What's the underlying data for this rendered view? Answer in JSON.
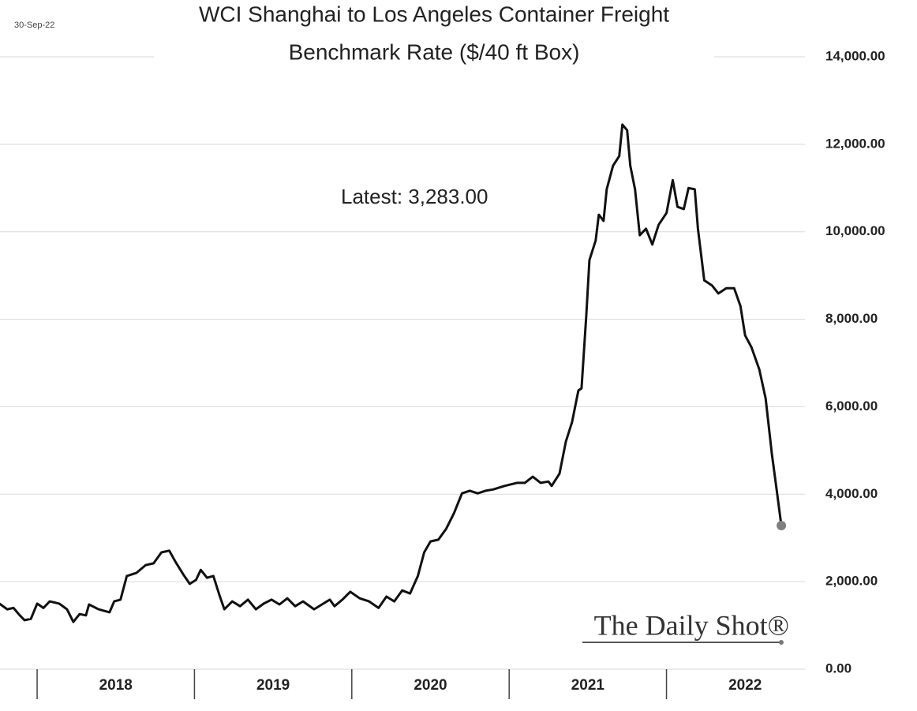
{
  "chart_data": {
    "type": "line",
    "date": "30-Sep-22",
    "title": [
      "WCI Shanghai to Los Angeles Container Freight",
      "Benchmark Rate ($/40 ft Box)"
    ],
    "annotation": "Latest:  3,283.00",
    "source": "The Daily Shot®",
    "color": "#111111",
    "marker_color": "#7f7f7f",
    "grid": true,
    "x": [
      2017.76,
      2017.81,
      2017.85,
      2017.89,
      2017.92,
      2017.96,
      2018.0,
      2018.04,
      2018.08,
      2018.14,
      2018.19,
      2018.23,
      2018.27,
      2018.31,
      2018.33,
      2018.39,
      2018.46,
      2018.49,
      2018.53,
      2018.57,
      2018.63,
      2018.69,
      2018.74,
      2018.79,
      2018.84,
      2018.88,
      2018.93,
      2018.97,
      2019.01,
      2019.04,
      2019.08,
      2019.12,
      2019.16,
      2019.19,
      2019.24,
      2019.29,
      2019.34,
      2019.39,
      2019.44,
      2019.49,
      2019.54,
      2019.59,
      2019.64,
      2019.69,
      2019.76,
      2019.81,
      2019.86,
      2019.89,
      2019.94,
      2019.99,
      2020.05,
      2020.11,
      2020.17,
      2020.22,
      2020.27,
      2020.32,
      2020.37,
      2020.42,
      2020.46,
      2020.5,
      2020.55,
      2020.6,
      2020.65,
      2020.7,
      2020.75,
      2020.8,
      2020.85,
      2020.9,
      2020.97,
      2021.05,
      2021.1,
      2021.15,
      2021.2,
      2021.25,
      2021.27,
      2021.32,
      2021.36,
      2021.4,
      2021.44,
      2021.46,
      2021.49,
      2021.51,
      2021.55,
      2021.57,
      2021.6,
      2021.62,
      2021.66,
      2021.7,
      2021.72,
      2021.75,
      2021.77,
      2021.8,
      2021.83,
      2021.87,
      2021.91,
      2021.95,
      2022.0,
      2022.04,
      2022.07,
      2022.11,
      2022.14,
      2022.18,
      2022.2,
      2022.24,
      2022.29,
      2022.33,
      2022.38,
      2022.43,
      2022.47,
      2022.5,
      2022.54,
      2022.59,
      2022.63,
      2022.67,
      2022.7,
      2022.73
    ],
    "values": [
      1500,
      1370,
      1400,
      1230,
      1120,
      1150,
      1500,
      1400,
      1550,
      1500,
      1370,
      1080,
      1260,
      1230,
      1480,
      1370,
      1300,
      1550,
      1590,
      2130,
      2200,
      2380,
      2420,
      2670,
      2710,
      2450,
      2160,
      1950,
      2040,
      2270,
      2090,
      2130,
      1680,
      1370,
      1550,
      1440,
      1590,
      1370,
      1500,
      1590,
      1480,
      1620,
      1440,
      1550,
      1370,
      1480,
      1590,
      1440,
      1590,
      1770,
      1620,
      1550,
      1400,
      1660,
      1550,
      1800,
      1730,
      2130,
      2670,
      2920,
      2960,
      3210,
      3570,
      4020,
      4080,
      4020,
      4080,
      4110,
      4190,
      4260,
      4260,
      4400,
      4260,
      4290,
      4190,
      4470,
      5200,
      5650,
      6370,
      6420,
      8080,
      9350,
      9800,
      10390,
      10250,
      10970,
      11510,
      11730,
      12450,
      12320,
      11510,
      10970,
      9920,
      10070,
      9710,
      10160,
      10430,
      11180,
      10570,
      10520,
      11000,
      10970,
      10070,
      8890,
      8770,
      8590,
      8710,
      8710,
      8300,
      7630,
      7360,
      6850,
      6190,
      4920,
      4110,
      3283
    ],
    "xlim": [
      2017.764,
      2022.88
    ],
    "xticks": [
      {
        "value": 2018,
        "label": "2018"
      },
      {
        "value": 2019,
        "label": "2019"
      },
      {
        "value": 2020,
        "label": "2020"
      },
      {
        "value": 2021,
        "label": "2021"
      },
      {
        "value": 2022,
        "label": "2022"
      }
    ],
    "ylim": [
      0,
      14000
    ],
    "yticks": [
      {
        "value": 0,
        "label": "0.00"
      },
      {
        "value": 2000,
        "label": "2,000.00"
      },
      {
        "value": 4000,
        "label": "4,000.00"
      },
      {
        "value": 6000,
        "label": "6,000.00"
      },
      {
        "value": 8000,
        "label": "8,000.00"
      },
      {
        "value": 10000,
        "label": "10,000.00"
      },
      {
        "value": 12000,
        "label": "12,000.00"
      },
      {
        "value": 14000,
        "label": "14,000.00"
      }
    ]
  }
}
